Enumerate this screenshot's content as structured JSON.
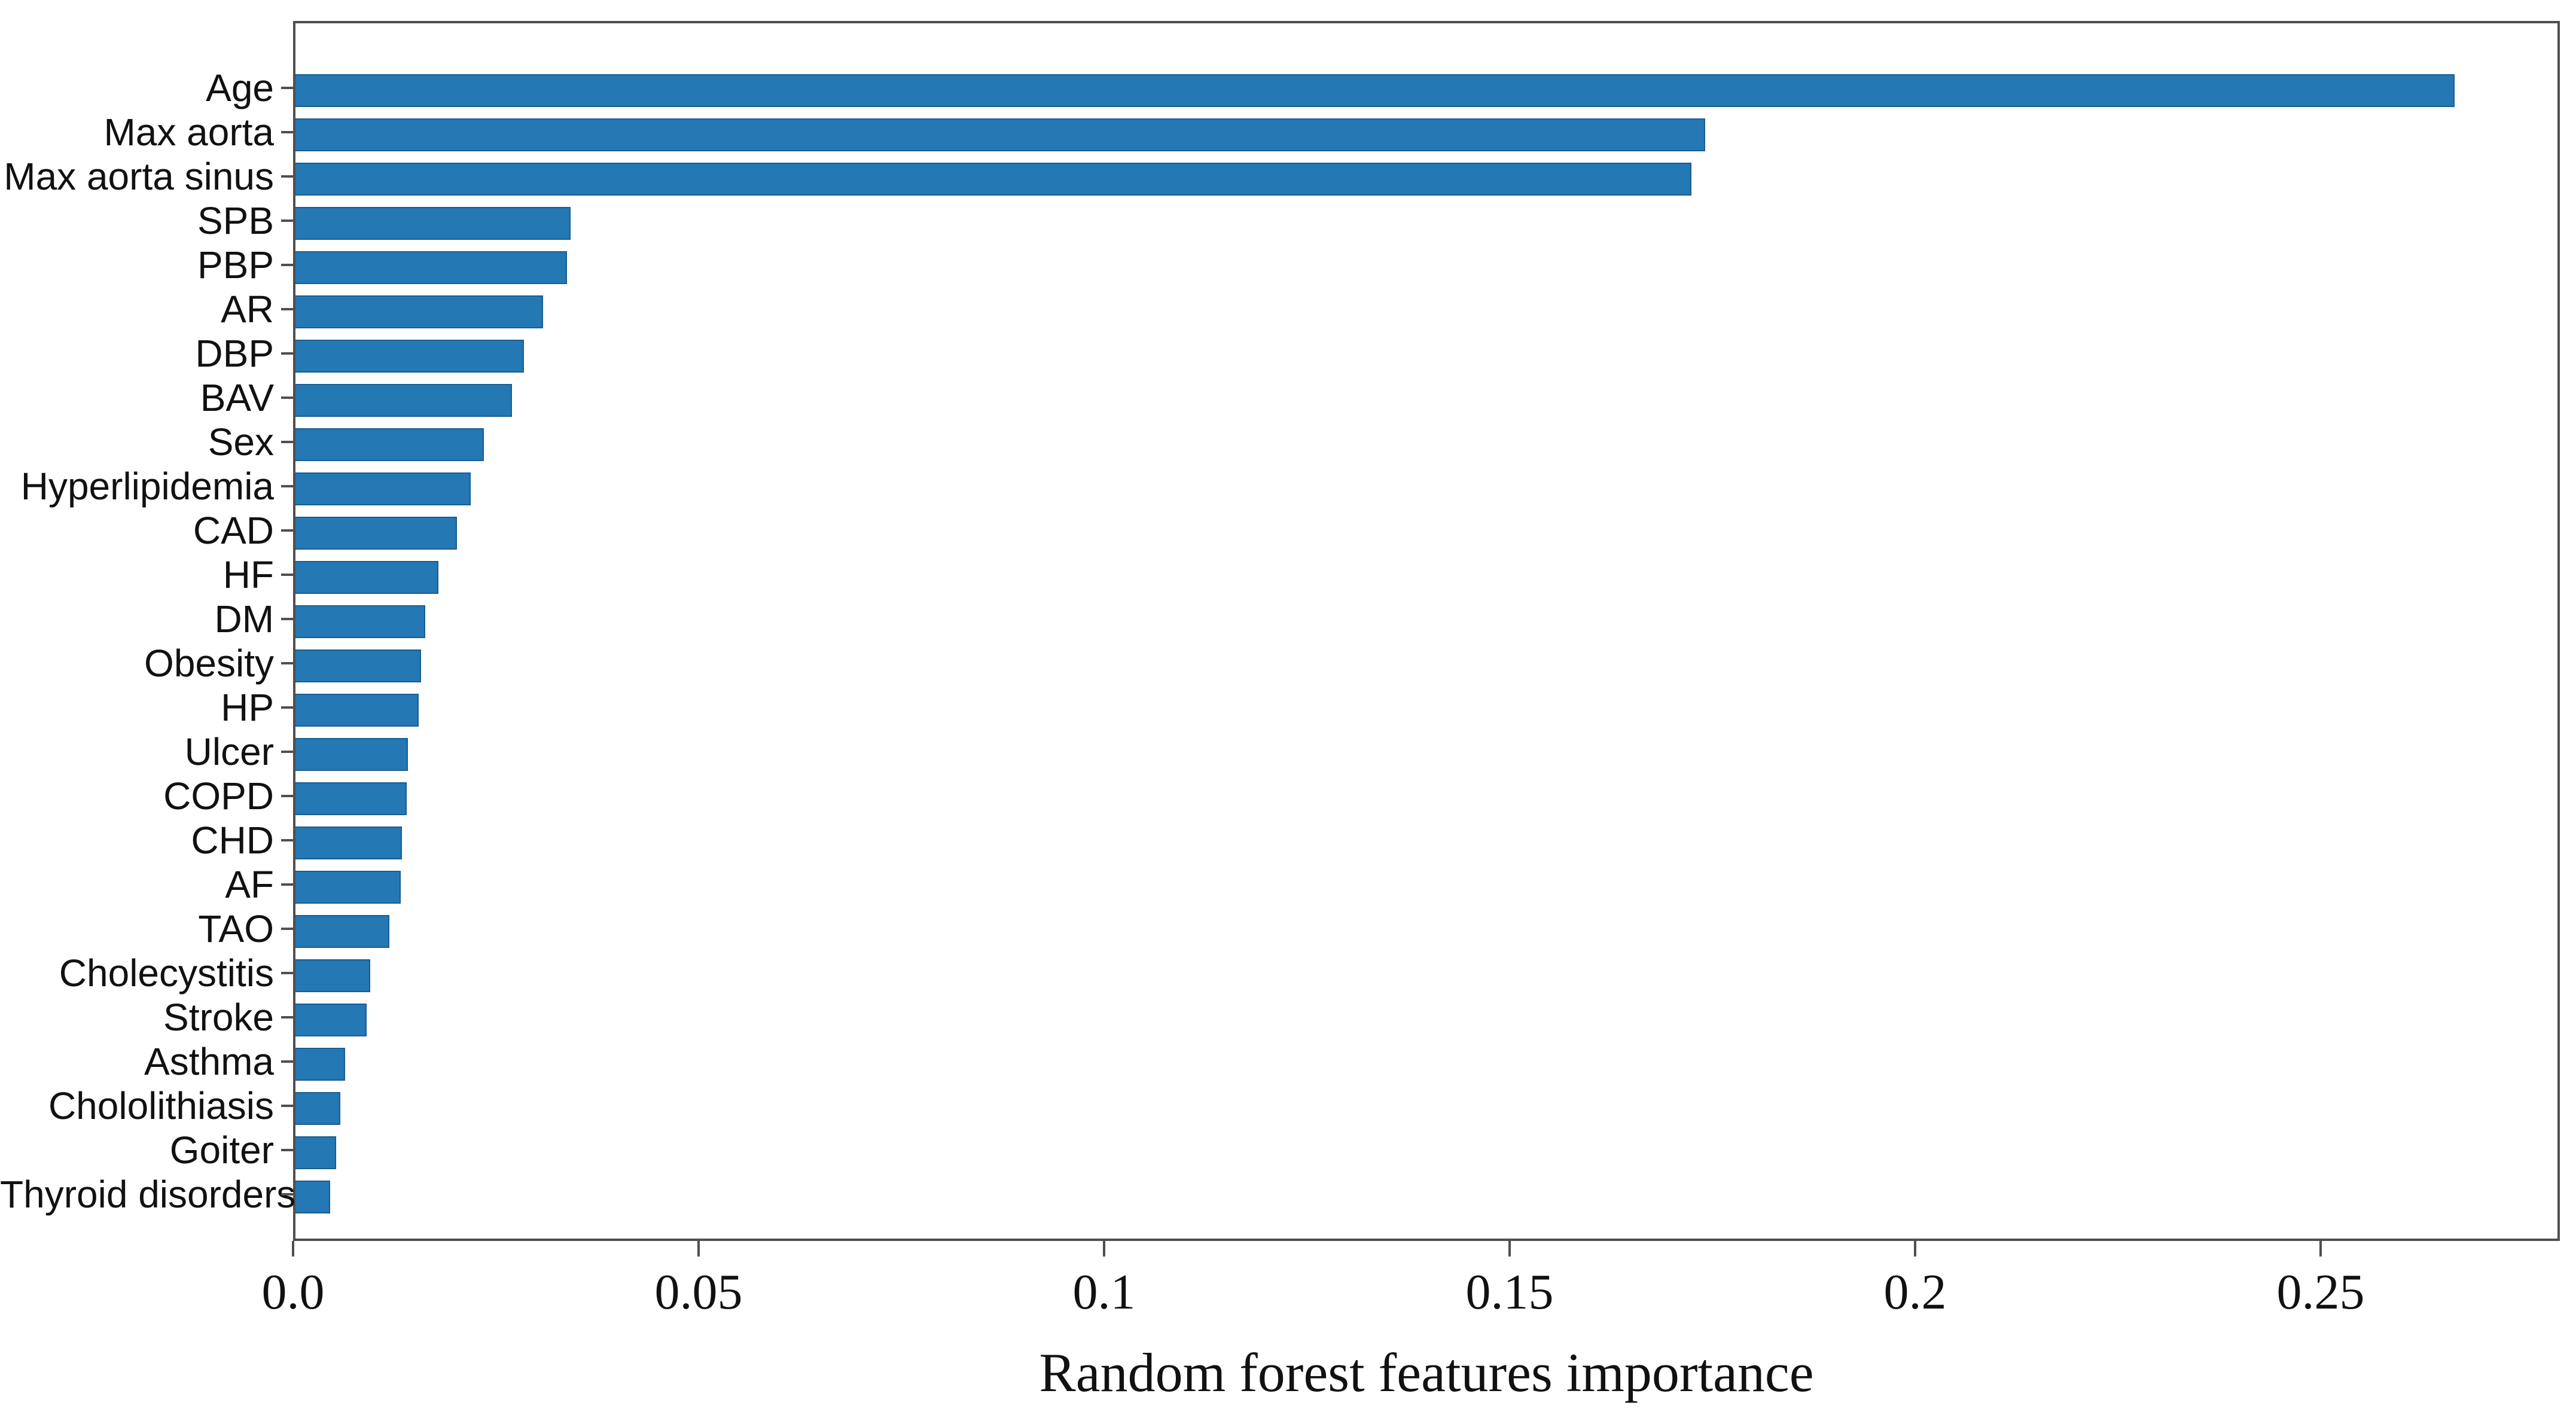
{
  "figure": {
    "background": "#ffffff"
  },
  "chart_data": {
    "type": "bar",
    "orientation": "horizontal",
    "title": "",
    "xlabel": "Random forest features importance",
    "ylabel": "",
    "categories": [
      "Age",
      "Max aorta",
      "Max aorta sinus",
      "SPB",
      "PBP",
      "AR",
      "DBP",
      "BAV",
      "Sex",
      "Hyperlipidemia",
      "CAD",
      "HF",
      "DM",
      "Obesity",
      "HP",
      "Ulcer",
      "COPD",
      "CHD",
      "AF",
      "TAO",
      "Cholecystitis",
      "Stroke",
      "Asthma",
      "Chololithiasis",
      "Goiter",
      "Thyroid disorders"
    ],
    "values": [
      0.2662,
      0.1738,
      0.1721,
      0.0339,
      0.0335,
      0.0305,
      0.0282,
      0.0267,
      0.0232,
      0.0216,
      0.0199,
      0.0176,
      0.016,
      0.0155,
      0.0152,
      0.0139,
      0.0137,
      0.0131,
      0.013,
      0.0116,
      0.0092,
      0.0088,
      0.0061,
      0.0055,
      0.005,
      0.0043
    ],
    "xlim": [
      0,
      0.2795
    ],
    "xticks": {
      "values": [
        0,
        0.05,
        0.1,
        0.15,
        0.2,
        0.25
      ],
      "labels": [
        "0.0",
        "0.05",
        "0.1",
        "0.15",
        "0.2",
        "0.25"
      ]
    },
    "grid": false,
    "legend": null,
    "colors": {
      "bar_fill": "#2478b4",
      "bar_edge": "#15518a",
      "axis": "#4f4f4f",
      "text": "#111111"
    }
  }
}
